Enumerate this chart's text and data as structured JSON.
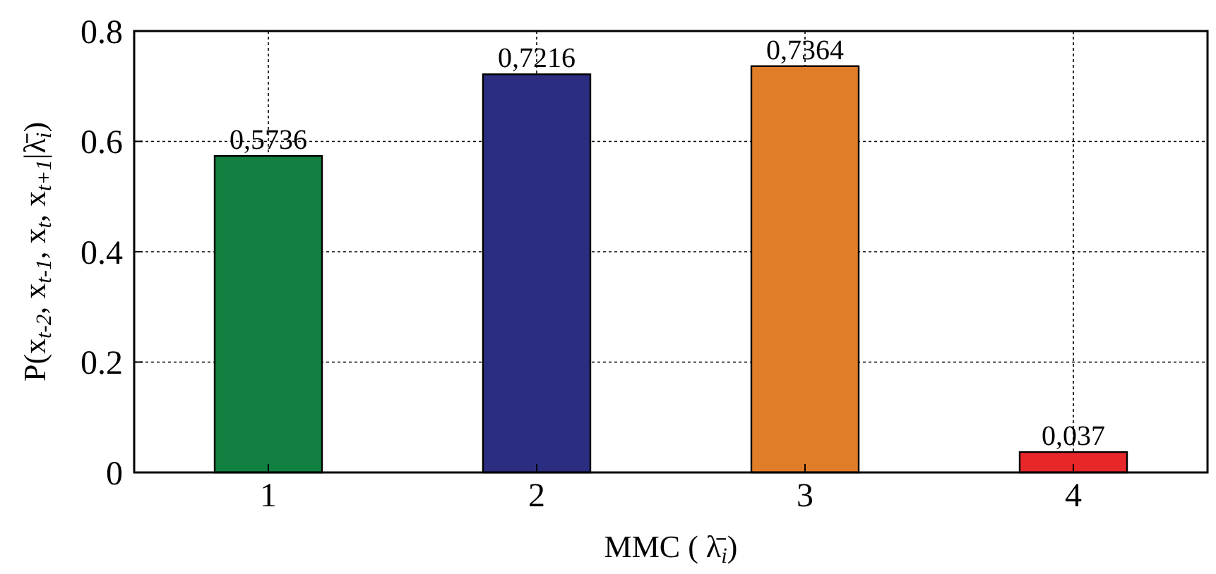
{
  "chart_data": {
    "type": "bar",
    "xlabel": "MMC ( λ̄$_{i}$)",
    "ylabel": "P(x$_{t-2}$, x$_{t-1}$, x$_{t}$, x$_{t+1}$|λ̄$_{i}$)",
    "categories": [
      "1",
      "2",
      "3",
      "4"
    ],
    "values": [
      0.5736,
      0.7216,
      0.7364,
      0.037
    ],
    "value_labels": [
      "0,5736",
      "0,7216",
      "0,7364",
      "0,037"
    ],
    "colors": [
      "#118040",
      "#2b2d80",
      "#df7d29",
      "#e8272a"
    ],
    "ylim": [
      0,
      0.8
    ],
    "yticks": [
      0,
      0.2,
      0.4,
      0.6,
      0.8
    ],
    "grid": true
  }
}
